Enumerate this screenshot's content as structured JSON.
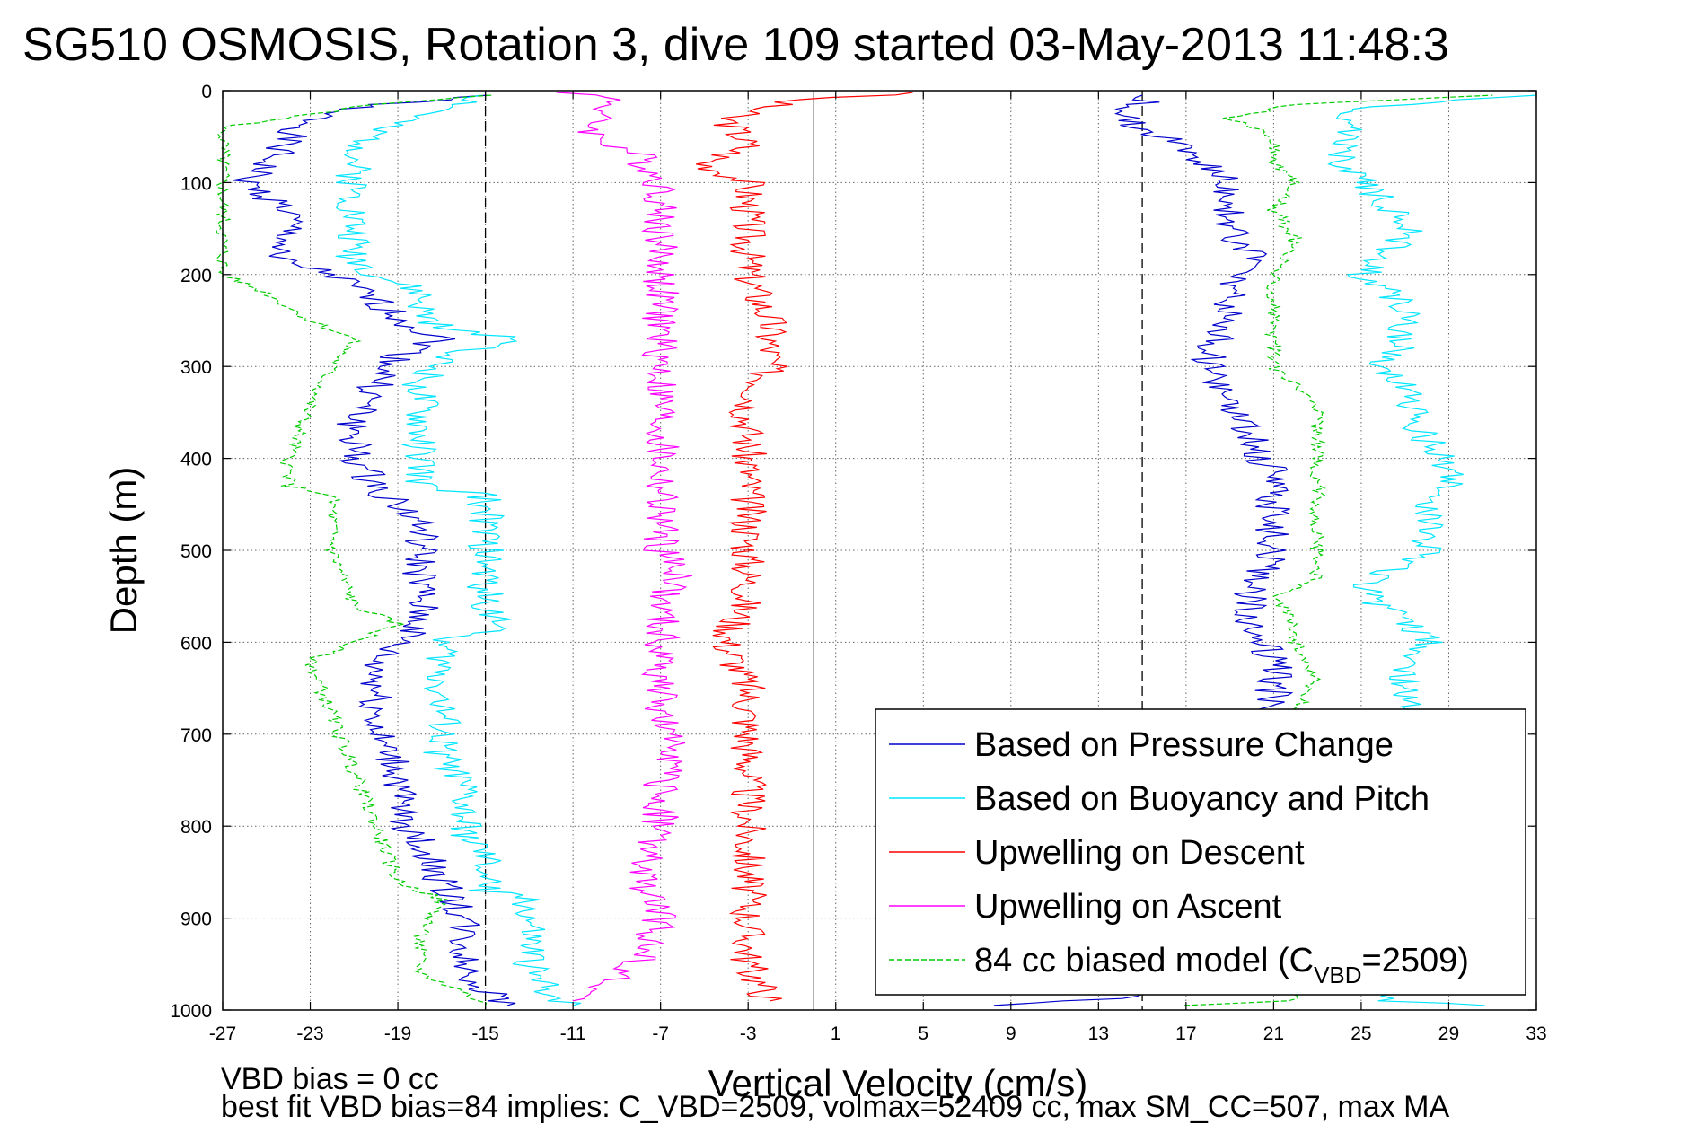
{
  "chart_data": {
    "type": "line",
    "title": "SG510 OSMOSIS, Rotation 3, dive 109 started 03-May-2013 11:48:3",
    "xlabel": "Vertical Velocity (cm/s)",
    "ylabel": "Depth (m)",
    "xlim": [
      -27,
      33
    ],
    "ylim": [
      1000,
      0
    ],
    "y_inverted": true,
    "grid": true,
    "x_ticks": [
      "-27",
      "-23",
      "-19",
      "-15",
      "-11",
      "-7",
      "-3",
      "1",
      "5",
      "9",
      "13",
      "17",
      "21",
      "25",
      "29",
      "33"
    ],
    "y_ticks": [
      "0",
      "100",
      "200",
      "300",
      "400",
      "500",
      "600",
      "700",
      "800",
      "900",
      "1000"
    ],
    "reference_lines": [
      {
        "x": -15,
        "style": "dashed"
      },
      {
        "x": 15,
        "style": "dashed"
      },
      {
        "x": 0,
        "style": "solid"
      }
    ],
    "legend_position": "bottom-right",
    "legend": [
      {
        "label": "Based on Pressure Change",
        "color": "#0000cc",
        "dash": "solid"
      },
      {
        "label": "Based on Buoyancy and Pitch",
        "color": "#00e5ff",
        "dash": "solid"
      },
      {
        "label": "Upwelling on Descent",
        "color": "#ff0000",
        "dash": "solid"
      },
      {
        "label": "Upwelling on Ascent",
        "color": "#ff00ff",
        "dash": "solid"
      },
      {
        "label_main": "84 cc biased model (C",
        "label_sub": "VBD",
        "label_tail": "=2509)",
        "color": "#00cc00",
        "dash": "dashed"
      }
    ],
    "series": [
      {
        "name": "Based on Pressure Change",
        "color": "#0000cc",
        "dash": "solid",
        "profiles": [
          {
            "depth": [
              5,
              20,
              50,
              80,
              100,
              130,
              160,
              180,
              200,
              230,
              260,
              270,
              290,
              320,
              360,
              400,
              430,
              470,
              520,
              560,
              580,
              620,
              660,
              700,
              740,
              780,
              820,
              860,
              900,
              950,
              980,
              995
            ],
            "velocity": [
              -15,
              -22,
              -24,
              -25,
              -26,
              -24,
              -24,
              -25,
              -22,
              -20,
              -18,
              -17,
              -19,
              -20,
              -21,
              -21,
              -20,
              -18,
              -18,
              -18,
              -18,
              -20,
              -20,
              -20,
              -19,
              -19,
              -18,
              -17,
              -16,
              -16,
              -15,
              -14
            ]
          },
          {
            "depth": [
              995,
              985,
              960,
              930,
              900,
              860,
              820,
              780,
              740,
              700,
              660,
              620,
              580,
              540,
              500,
              460,
              420,
              380,
              340,
              300,
              280,
              250,
              220,
              200,
              180,
              150,
              120,
              100,
              80,
              60,
              40,
              25,
              15,
              5
            ],
            "velocity": [
              9,
              15,
              20,
              20,
              20,
              21,
              21,
              21,
              21,
              21,
              21,
              21,
              20,
              20,
              21,
              21,
              21,
              20,
              19,
              18,
              18,
              19,
              19,
              19,
              20,
              19,
              19,
              19,
              18,
              17,
              15,
              14,
              15,
              15
            ]
          }
        ]
      },
      {
        "name": "Based on Buoyancy and Pitch",
        "color": "#00e5ff",
        "dash": "solid",
        "profiles": [
          {
            "depth": [
              5,
              15,
              40,
              80,
              100,
              130,
              180,
              200,
              220,
              240,
              260,
              270,
              290,
              320,
              360,
              400,
              430,
              440,
              480,
              520,
              560,
              580,
              600,
              640,
              680,
              720,
              760,
              800,
              840,
              870,
              880,
              920,
              960,
              980,
              995
            ],
            "velocity": [
              -15,
              -16,
              -20,
              -21,
              -21,
              -21,
              -21,
              -20,
              -18,
              -18,
              -17,
              -13,
              -17,
              -18,
              -18,
              -18,
              -18,
              -15,
              -15,
              -15,
              -15,
              -14,
              -17,
              -17,
              -17,
              -17,
              -16,
              -16,
              -15,
              -15,
              -13,
              -13,
              -13,
              -12,
              -11
            ]
          },
          {
            "depth": [
              995,
              990,
              960,
              920,
              880,
              840,
              800,
              760,
              720,
              680,
              660,
              640,
              620,
              600,
              580,
              560,
              540,
              500,
              460,
              420,
              380,
              340,
              320,
              300,
              270,
              240,
              210,
              200,
              180,
              160,
              140,
              120,
              100,
              80,
              60,
              40,
              20,
              5
            ],
            "velocity": [
              30,
              26,
              26,
              26,
              27,
              27,
              28,
              27,
              28,
              28,
              27,
              27,
              27,
              28,
              27,
              26,
              25,
              28,
              28,
              29,
              28,
              27,
              27,
              26,
              27,
              27,
              26,
              25,
              26,
              27,
              27,
              26,
              25,
              24,
              24,
              25,
              24,
              33
            ]
          }
        ]
      },
      {
        "name": "Upwelling on Descent",
        "color": "#ff0000",
        "dash": "solid",
        "profiles": [
          {
            "depth": [
              2,
              10,
              30,
              60,
              80,
              100,
              150,
              200,
              250,
              280,
              300,
              350,
              400,
              450,
              500,
              550,
              600,
              650,
              700,
              750,
              800,
              850,
              900,
              950,
              990
            ],
            "velocity": [
              5,
              -1,
              -4,
              -3,
              -5,
              -3,
              -3,
              -3,
              -2,
              -2,
              -2,
              -3,
              -3,
              -3,
              -3,
              -3,
              -4,
              -3,
              -3,
              -3,
              -3,
              -3,
              -3,
              -3,
              -2
            ]
          }
        ]
      },
      {
        "name": "Upwelling on Ascent",
        "color": "#ff00ff",
        "dash": "solid",
        "profiles": [
          {
            "depth": [
              2,
              10,
              30,
              50,
              70,
              100,
              130,
              160,
              200,
              250,
              300,
              350,
              400,
              450,
              500,
              530,
              550,
              600,
              650,
              700,
              712,
              750,
              800,
              850,
              900,
              950,
              990
            ],
            "velocity": [
              -11,
              -9,
              -10,
              -10,
              -8,
              -7,
              -7,
              -7,
              -7,
              -7,
              -7,
              -7,
              -7,
              -7,
              -7,
              -6,
              -7,
              -7,
              -7,
              -7,
              -6,
              -7,
              -7,
              -8,
              -7,
              -8,
              -11
            ]
          }
        ]
      },
      {
        "name": "84 cc biased model (C_VBD=2509)",
        "color": "#00cc00",
        "dash": "dashed",
        "profiles": [
          {
            "depth": [
              5,
              15,
              40,
              100,
              160,
              200,
              220,
              250,
              270,
              300,
              340,
              400,
              430,
              440,
              500,
              560,
              580,
              620,
              680,
              740,
              800,
              860,
              880,
              920,
              960,
              980,
              995
            ],
            "velocity": [
              -15,
              -20,
              -27,
              -27,
              -27,
              -27,
              -25,
              -23,
              -21,
              -22,
              -23,
              -24,
              -24,
              -22,
              -22,
              -21,
              -19,
              -23,
              -22,
              -21,
              -20,
              -19,
              -17,
              -18,
              -18,
              -16,
              -15
            ]
          },
          {
            "depth": [
              995,
              990,
              960,
              920,
              880,
              840,
              800,
              760,
              720,
              680,
              640,
              600,
              580,
              550,
              530,
              500,
              460,
              420,
              380,
              340,
              320,
              300,
              270,
              250,
              220,
              200,
              160,
              130,
              100,
              80,
              50,
              30,
              15,
              5
            ],
            "velocity": [
              17,
              22,
              22,
              22,
              22,
              22,
              22,
              22,
              22,
              22,
              23,
              22,
              22,
              21,
              23,
              23,
              23,
              23,
              23,
              23,
              22,
              21,
              21,
              21,
              21,
              21,
              22,
              21,
              22,
              21,
              21,
              19,
              22,
              31
            ]
          }
        ]
      }
    ]
  },
  "annotations": {
    "vbd_bias": "VBD bias = 0 cc",
    "best_fit": "best fit VBD bias=84 implies: C_VBD=2509, volmax=52409 cc, max SM_CC=507, max MA"
  }
}
